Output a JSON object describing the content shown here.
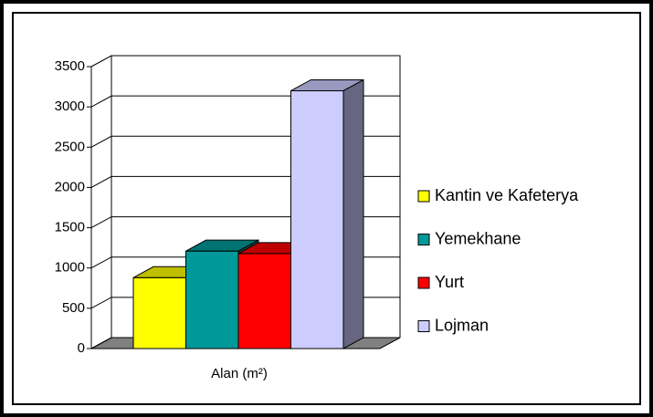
{
  "chart_data": {
    "type": "bar3d",
    "categories": [
      "Alan (m²)"
    ],
    "series": [
      {
        "name": "Kantin ve Kafeterya",
        "color": "#ffff00",
        "values": [
          880
        ]
      },
      {
        "name": "Yemekhane",
        "color": "#009999",
        "values": [
          1210
        ]
      },
      {
        "name": "Yurt",
        "color": "#ff0000",
        "values": [
          1180
        ]
      },
      {
        "name": "Lojman",
        "color": "#ccccff",
        "values": [
          3200
        ]
      }
    ],
    "ylim": [
      0,
      3500
    ],
    "yticks": [
      0,
      500,
      1000,
      1500,
      2000,
      2500,
      3000,
      3500
    ],
    "grid": true,
    "legend": "right"
  }
}
